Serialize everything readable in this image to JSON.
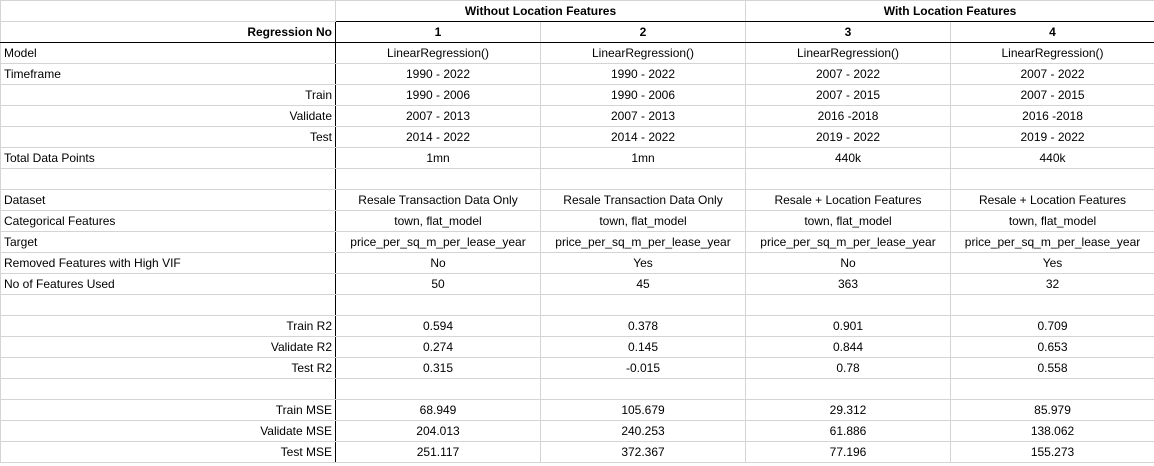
{
  "groups": [
    "Without Location Features",
    "With Location Features"
  ],
  "header": {
    "label": "Regression No",
    "cols": [
      "1",
      "2",
      "3",
      "4"
    ]
  },
  "rows": [
    {
      "label": "Model",
      "align": "l",
      "values": [
        "LinearRegression()",
        "LinearRegression()",
        "LinearRegression()",
        "LinearRegression()"
      ]
    },
    {
      "label": "Timeframe",
      "align": "l",
      "values": [
        "1990 - 2022",
        "1990 - 2022",
        "2007 - 2022",
        "2007 - 2022"
      ]
    },
    {
      "label": "Train",
      "align": "r",
      "values": [
        "1990 - 2006",
        "1990 - 2006",
        "2007 - 2015",
        "2007 - 2015"
      ]
    },
    {
      "label": "Validate",
      "align": "r",
      "values": [
        "2007 - 2013",
        "2007 - 2013",
        "2016 -2018",
        "2016 -2018"
      ]
    },
    {
      "label": "Test",
      "align": "r",
      "values": [
        "2014 - 2022",
        "2014 - 2022",
        "2019 - 2022",
        "2019 - 2022"
      ]
    },
    {
      "label": "Total Data Points",
      "align": "l",
      "values": [
        "1mn",
        "1mn",
        "440k",
        "440k"
      ]
    },
    {
      "label": "",
      "align": "l",
      "values": [
        "",
        "",
        "",
        ""
      ]
    },
    {
      "label": "Dataset",
      "align": "l",
      "values": [
        "Resale Transaction Data Only",
        "Resale Transaction Data Only",
        "Resale + Location Features",
        "Resale + Location Features"
      ]
    },
    {
      "label": "Categorical Features",
      "align": "l",
      "values": [
        "town, flat_model",
        "town, flat_model",
        "town, flat_model",
        "town, flat_model"
      ]
    },
    {
      "label": "Target",
      "align": "l",
      "values": [
        "price_per_sq_m_per_lease_year",
        "price_per_sq_m_per_lease_year",
        "price_per_sq_m_per_lease_year",
        "price_per_sq_m_per_lease_year"
      ]
    },
    {
      "label": "Removed Features with High VIF",
      "align": "l",
      "values": [
        "No",
        "Yes",
        "No",
        "Yes"
      ]
    },
    {
      "label": "No of Features Used",
      "align": "l",
      "values": [
        "50",
        "45",
        "363",
        "32"
      ]
    },
    {
      "label": "",
      "align": "l",
      "values": [
        "",
        "",
        "",
        ""
      ]
    },
    {
      "label": "Train R2",
      "align": "r",
      "values": [
        "0.594",
        "0.378",
        "0.901",
        "0.709"
      ]
    },
    {
      "label": "Validate R2",
      "align": "r",
      "values": [
        "0.274",
        "0.145",
        "0.844",
        "0.653"
      ]
    },
    {
      "label": "Test R2",
      "align": "r",
      "values": [
        "0.315",
        "-0.015",
        "0.78",
        "0.558"
      ]
    },
    {
      "label": "",
      "align": "l",
      "values": [
        "",
        "",
        "",
        ""
      ]
    },
    {
      "label": "Train MSE",
      "align": "r",
      "values": [
        "68.949",
        "105.679",
        "29.312",
        "85.979"
      ]
    },
    {
      "label": "Validate MSE",
      "align": "r",
      "values": [
        "204.013",
        "240.253",
        "61.886",
        "138.062"
      ]
    },
    {
      "label": "Test MSE",
      "align": "r",
      "values": [
        "251.117",
        "372.367",
        "77.196",
        "155.273"
      ]
    }
  ]
}
